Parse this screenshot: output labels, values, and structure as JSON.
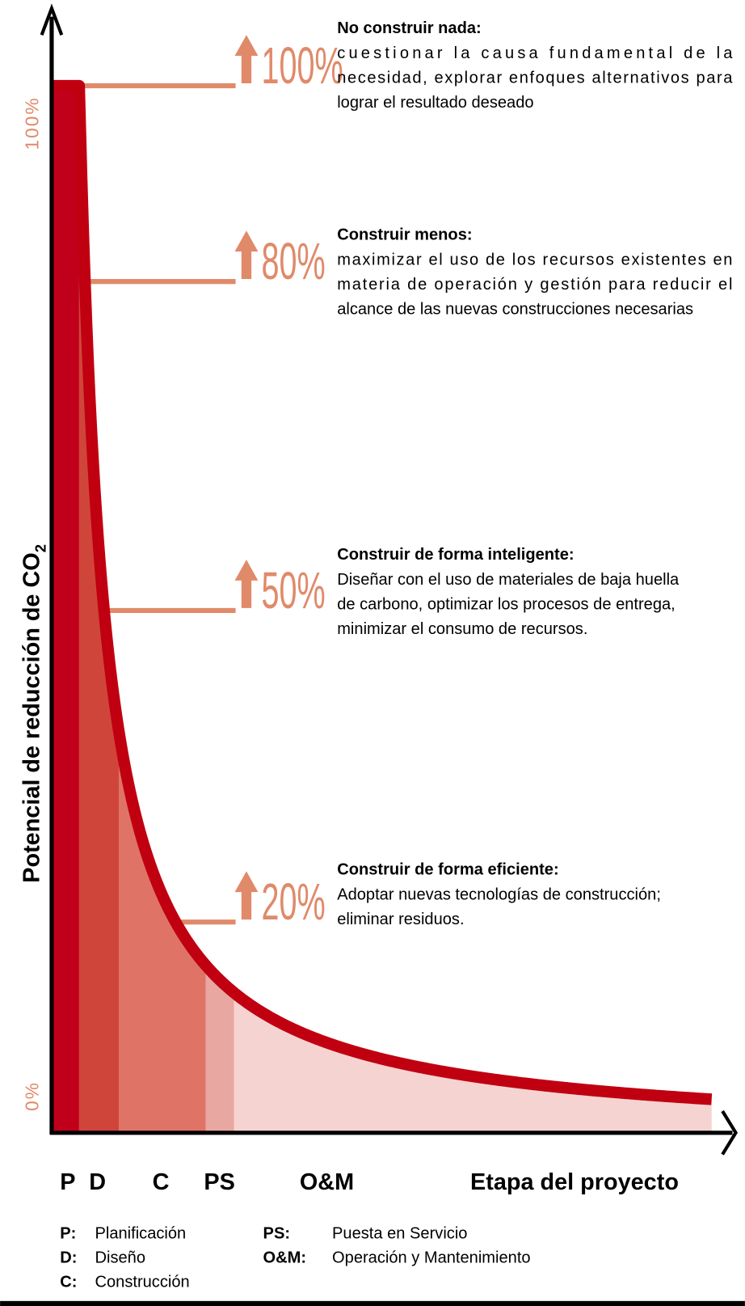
{
  "y_axis_label": {
    "text": "Potencial de reducción de CO",
    "subscript": "2"
  },
  "y_ticks": [
    "100%",
    "0%"
  ],
  "levels": [
    {
      "percent": "100%",
      "title": "No construir nada:",
      "lines": [
        "cuestionar la causa fundamental de la",
        "necesidad, explorar enfoques alternativos para",
        "lograr el resultado deseado"
      ]
    },
    {
      "percent": "80%",
      "title": "Construir menos:",
      "lines": [
        "maximizar el uso de los recursos existentes en",
        "materia de operación y gestión para reducir el",
        "alcance de las nuevas construcciones necesarias"
      ]
    },
    {
      "percent": "50%",
      "title": "Construir de forma inteligente:",
      "lines": [
        "Diseñar con el uso de materiales de baja huella",
        "de  carbono, optimizar los procesos de entrega,",
        "minimizar el consumo de recursos."
      ]
    },
    {
      "percent": "20%",
      "title": "Construir de forma eficiente:",
      "lines": [
        "Adoptar nuevas tecnologías de construcción;",
        "eliminar residuos."
      ]
    }
  ],
  "stages": [
    "P",
    "D",
    "C",
    "PS",
    "O&M"
  ],
  "x_axis_label": "Etapa del proyecto",
  "legend": [
    {
      "abbr": "P:",
      "name": "Planificación"
    },
    {
      "abbr": "D:",
      "name": "Diseño"
    },
    {
      "abbr": "C:",
      "name": "Construcción"
    },
    {
      "abbr": "PS:",
      "name": "Puesta en Servicio"
    },
    {
      "abbr": "O&M:",
      "name": "Operación y Mantenimiento"
    }
  ]
}
